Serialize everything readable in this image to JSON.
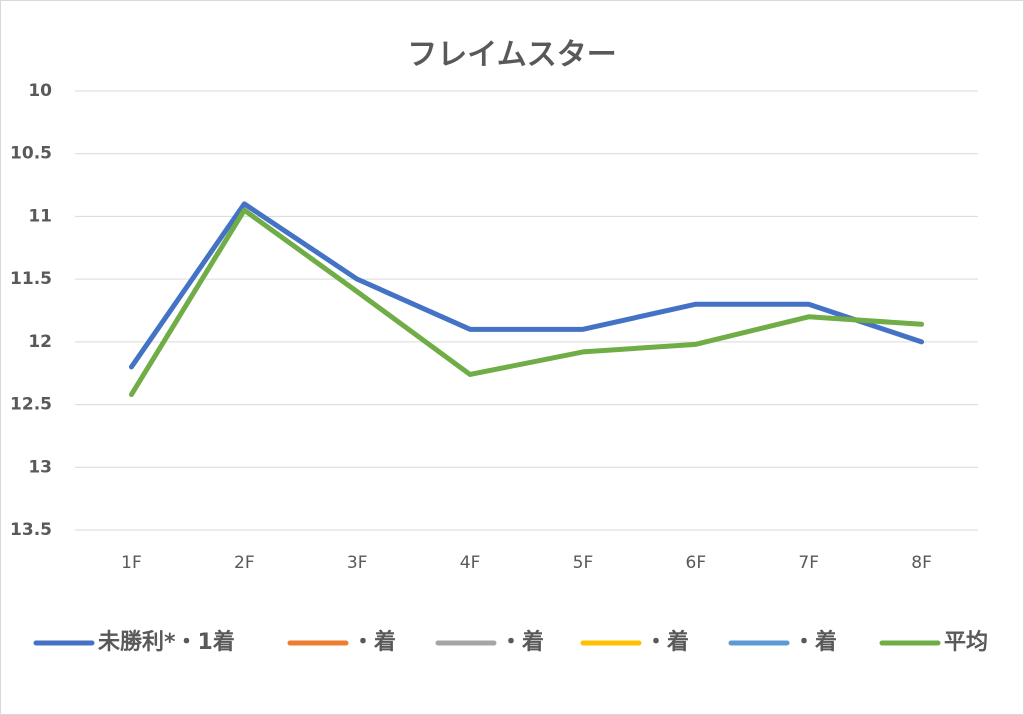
{
  "chart_data": {
    "type": "line",
    "title": "フレイムスター",
    "categories": [
      "1F",
      "2F",
      "3F",
      "4F",
      "5F",
      "6F",
      "7F",
      "8F"
    ],
    "series": [
      {
        "name": "未勝利*・1着",
        "color": "#4472c4",
        "values": [
          12.2,
          10.9,
          11.5,
          11.9,
          11.9,
          11.7,
          11.7,
          12.0
        ]
      },
      {
        "name": "・着",
        "color": "#ed7d31",
        "values": [
          null,
          null,
          null,
          null,
          null,
          null,
          null,
          null
        ]
      },
      {
        "name": "・着",
        "color": "#a5a5a5",
        "values": [
          null,
          null,
          null,
          null,
          null,
          null,
          null,
          null
        ]
      },
      {
        "name": "・着",
        "color": "#ffc000",
        "values": [
          null,
          null,
          null,
          null,
          null,
          null,
          null,
          null
        ]
      },
      {
        "name": "・着",
        "color": "#5b9bd5",
        "values": [
          null,
          null,
          null,
          null,
          null,
          null,
          null,
          null
        ]
      },
      {
        "name": "平均",
        "color": "#70ad47",
        "values": [
          12.42,
          10.95,
          11.6,
          12.26,
          12.08,
          12.02,
          11.8,
          11.86
        ]
      }
    ],
    "ylim": [
      10,
      13.5
    ],
    "yticks": [
      10,
      10.5,
      11,
      11.5,
      12,
      12.5,
      13,
      13.5
    ],
    "y_inverted": true,
    "grid": true,
    "legend": "bottom"
  }
}
